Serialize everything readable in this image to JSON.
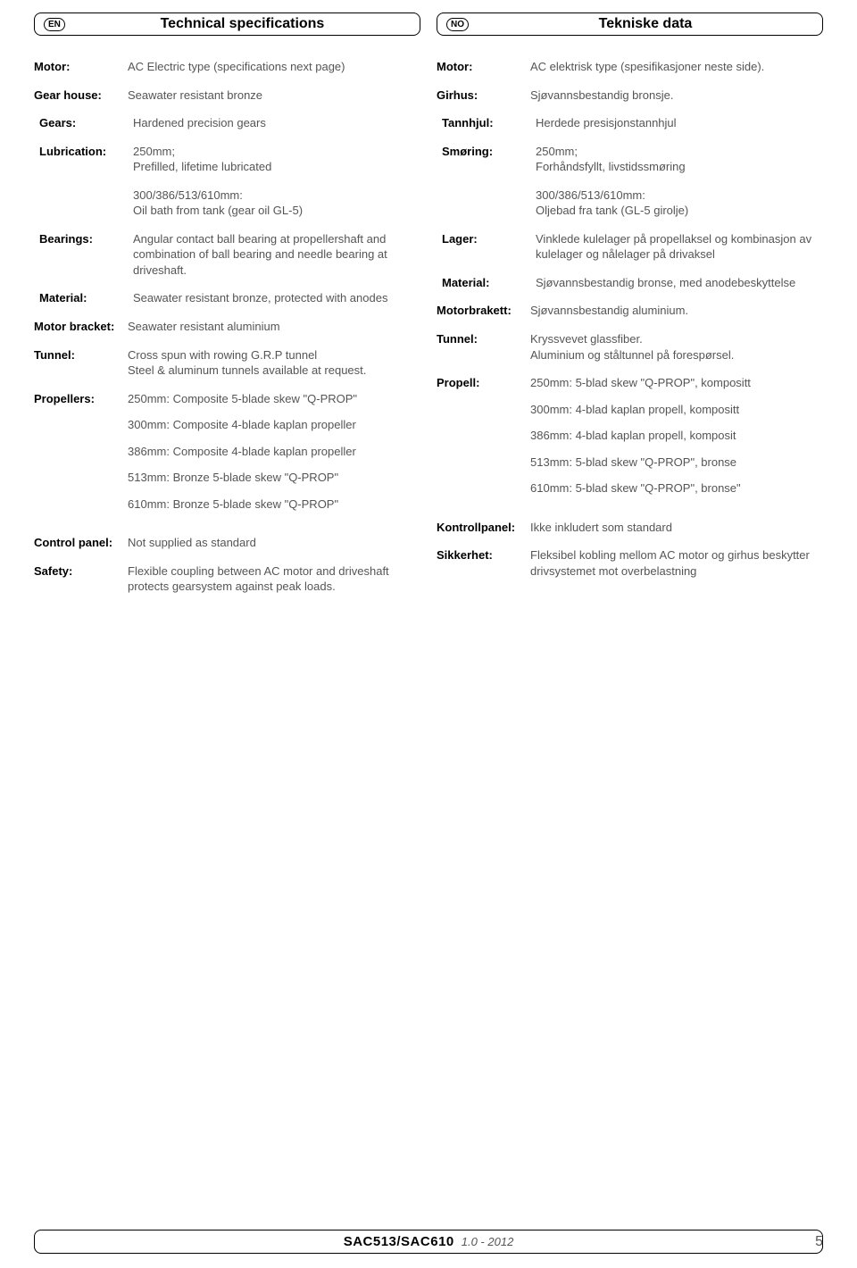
{
  "left": {
    "lang": "EN",
    "title": "Technical specifications",
    "rows": [
      {
        "label": "Motor:",
        "value": "AC Electric type (specifications next page)",
        "indent": 0
      },
      {
        "label": "Gear house:",
        "value": "Seawater resistant bronze",
        "indent": 0
      },
      {
        "label": "Gears:",
        "value": "Hardened precision gears",
        "indent": 1
      },
      {
        "label": "Lubrication:",
        "value": "250mm;\nPrefilled, lifetime lubricated",
        "indent": 1
      },
      {
        "label": "",
        "value": "300/386/513/610mm:\nOil bath from tank (gear oil GL-5)",
        "indent": 1
      },
      {
        "label": "Bearings:",
        "value": "Angular contact ball bearing at propellershaft and combination of ball bearing and needle bearing at driveshaft.",
        "indent": 1
      },
      {
        "label": "Material:",
        "value": "Seawater resistant bronze, protected with anodes",
        "indent": 1
      },
      {
        "label": "Motor bracket:",
        "value": "Seawater resistant aluminium",
        "indent": 0
      },
      {
        "label": "Tunnel:",
        "value": "Cross spun with rowing G.R.P tunnel\nSteel & aluminum tunnels available at request.",
        "indent": 0
      },
      {
        "label": "Propellers:",
        "value": "250mm: Composite 5-blade skew \"Q-PROP\"",
        "indent": 0,
        "propellers": [
          "300mm: Composite 4-blade kaplan propeller",
          "386mm: Composite 4-blade kaplan propeller",
          "513mm: Bronze 5-blade skew \"Q-PROP\"",
          "610mm: Bronze 5-blade skew \"Q-PROP\""
        ]
      },
      {
        "label": "Control panel:",
        "value": "Not supplied as standard",
        "indent": 0
      },
      {
        "label": "Safety:",
        "value": "Flexible coupling between AC motor and driveshaft protects gearsystem against peak loads.",
        "indent": 0
      }
    ]
  },
  "right": {
    "lang": "NO",
    "title": "Tekniske data",
    "rows": [
      {
        "label": "Motor:",
        "value": "AC elektrisk type (spesifikasjoner neste side).",
        "indent": 0
      },
      {
        "label": "Girhus:",
        "value": "Sjøvannsbestandig bronsje.",
        "indent": 0
      },
      {
        "label": "Tannhjul:",
        "value": "Herdede presisjonstannhjul",
        "indent": 1
      },
      {
        "label": "Smøring:",
        "value": "250mm;\nForhåndsfyllt, livstidssmøring",
        "indent": 1
      },
      {
        "label": "",
        "value": "300/386/513/610mm:\nOljebad fra tank (GL-5 girolje)",
        "indent": 1
      },
      {
        "label": "Lager:",
        "value": "Vinklede kulelager på propellaksel og kombinasjon av kulelager og nålelager på drivaksel",
        "indent": 1
      },
      {
        "label": "Material:",
        "value": "Sjøvannsbestandig bronse, med anodebeskyttelse",
        "indent": 1
      },
      {
        "label": "Motorbrakett:",
        "value": "Sjøvannsbestandig aluminium.",
        "indent": 0
      },
      {
        "label": "Tunnel:",
        "value": "Kryssvevet glassfiber.\nAluminium og ståltunnel på forespørsel.",
        "indent": 0
      },
      {
        "label": "Propell:",
        "value": "250mm: 5-blad skew \"Q-PROP\", kompositt",
        "indent": 0,
        "propellers": [
          "300mm: 4-blad kaplan propell, kompositt",
          "386mm: 4-blad kaplan propell, komposit",
          "513mm: 5-blad skew \"Q-PROP\", bronse",
          "610mm: 5-blad skew \"Q-PROP\", bronse\""
        ]
      },
      {
        "label": "Kontrollpanel:",
        "value": "Ikke inkludert som standard",
        "indent": 0
      },
      {
        "label": "Sikkerhet:",
        "value": "Fleksibel kobling mellom AC motor og girhus beskytter drivsystemet mot overbelastning",
        "indent": 0
      }
    ]
  },
  "footer": {
    "model": "SAC513/SAC610",
    "version": "1.0 - 2012",
    "page": "5"
  }
}
